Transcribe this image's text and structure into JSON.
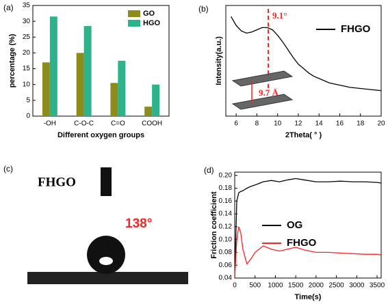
{
  "chart_data": [
    {
      "type": "bar",
      "label": "(a)",
      "x_label": "Different oxygen groups",
      "y_label": "percentage (%)",
      "categories": [
        "-OH",
        "C-O-C",
        "C=O",
        "COOH"
      ],
      "series": [
        {
          "name": "GO",
          "color": "#8c8c1c",
          "values": [
            17,
            20,
            10.5,
            3
          ]
        },
        {
          "name": "HGO",
          "color": "#2db38b",
          "values": [
            31.5,
            28.5,
            17.5,
            10
          ]
        }
      ],
      "ylim": [
        0,
        35
      ],
      "yticks": [
        0,
        5,
        10,
        15,
        20,
        25,
        30,
        35
      ]
    },
    {
      "type": "line",
      "label": "(b)",
      "x_label": "2Theta( ° )",
      "y_label": "Intensity(a.u.)",
      "x": [
        5.5,
        6,
        6.5,
        7,
        7.5,
        8,
        8.5,
        9,
        9.5,
        10,
        10.5,
        11,
        11.5,
        12,
        12.5,
        13,
        13.5,
        14,
        15,
        16,
        17,
        18,
        19,
        20
      ],
      "series": [
        {
          "name": "FHGO",
          "color": "#000000",
          "values": [
            90,
            82,
            77,
            75,
            76,
            78,
            80,
            80,
            78,
            73,
            67,
            60,
            53,
            47,
            43,
            39,
            36,
            34,
            30,
            28,
            26,
            25,
            24,
            23
          ]
        }
      ],
      "xlim": [
        5,
        20
      ],
      "xticks": [
        6,
        8,
        10,
        12,
        14,
        16,
        18,
        20
      ],
      "ylim": [
        0,
        100
      ],
      "annotations": [
        {
          "text": "9.1°",
          "x": 9.1
        },
        {
          "text": "9.7 Å"
        }
      ]
    },
    {
      "type": "photo",
      "label": "(c)",
      "title": "FHGO",
      "annotation": "138°"
    },
    {
      "type": "line",
      "label": "(d)",
      "x_label": "Time(s)",
      "y_label": "Friction coefficient",
      "x": [
        0,
        50,
        100,
        150,
        200,
        300,
        400,
        500,
        700,
        900,
        1100,
        1300,
        1500,
        1700,
        2000,
        2300,
        2600,
        2900,
        3200,
        3500,
        3600
      ],
      "series": [
        {
          "name": "OG",
          "color": "#000000",
          "values": [
            0.04,
            0.16,
            0.173,
            0.175,
            0.176,
            0.18,
            0.183,
            0.185,
            0.19,
            0.192,
            0.19,
            0.193,
            0.195,
            0.193,
            0.19,
            0.19,
            0.191,
            0.19,
            0.19,
            0.189,
            0.188
          ]
        },
        {
          "name": "FHGO",
          "color": "#ff2020",
          "values": [
            0.04,
            0.1,
            0.12,
            0.11,
            0.085,
            0.062,
            0.07,
            0.08,
            0.09,
            0.085,
            0.082,
            0.085,
            0.088,
            0.084,
            0.08,
            0.08,
            0.079,
            0.078,
            0.077,
            0.077,
            0.076
          ]
        }
      ],
      "xlim": [
        0,
        3600
      ],
      "xticks": [
        0,
        500,
        1000,
        1500,
        2000,
        2500,
        3000,
        3500
      ],
      "ylim": [
        0.04,
        0.205
      ],
      "yticks": [
        0.04,
        0.06,
        0.08,
        {
          "value": 0.1,
          "label": "0.10"
        },
        0.12,
        0.14,
        0.16,
        0.18,
        {
          "value": 0.2,
          "label": "0.20"
        }
      ]
    }
  ]
}
